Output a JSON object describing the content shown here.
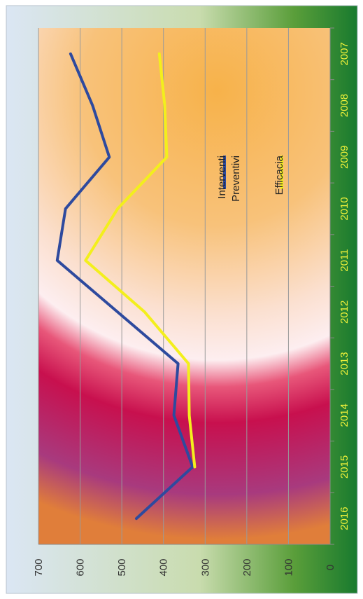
{
  "chart_data": {
    "type": "line",
    "orientation": "rotated-90-clockwise",
    "categories": [
      "2007",
      "2008",
      "2009",
      "2010",
      "2011",
      "2012",
      "2013",
      "2014",
      "2015",
      "2016"
    ],
    "series": [
      {
        "name_lines": [
          "Interventi",
          "Preventivi"
        ],
        "color": "#2e4a9e",
        "values": [
          623,
          570,
          530,
          635,
          655,
          510,
          365,
          375,
          330,
          465
        ]
      },
      {
        "name_lines": [
          "Efficacia"
        ],
        "color": "#f3ef1c",
        "values": [
          410,
          397,
          392,
          510,
          587,
          445,
          340,
          338,
          325,
          null
        ]
      }
    ],
    "y_ticks": [
      "0",
      "100",
      "200",
      "300",
      "400",
      "500",
      "600",
      "700"
    ],
    "ylim": [
      0,
      700
    ],
    "grid": true,
    "legend_placement": "right"
  }
}
